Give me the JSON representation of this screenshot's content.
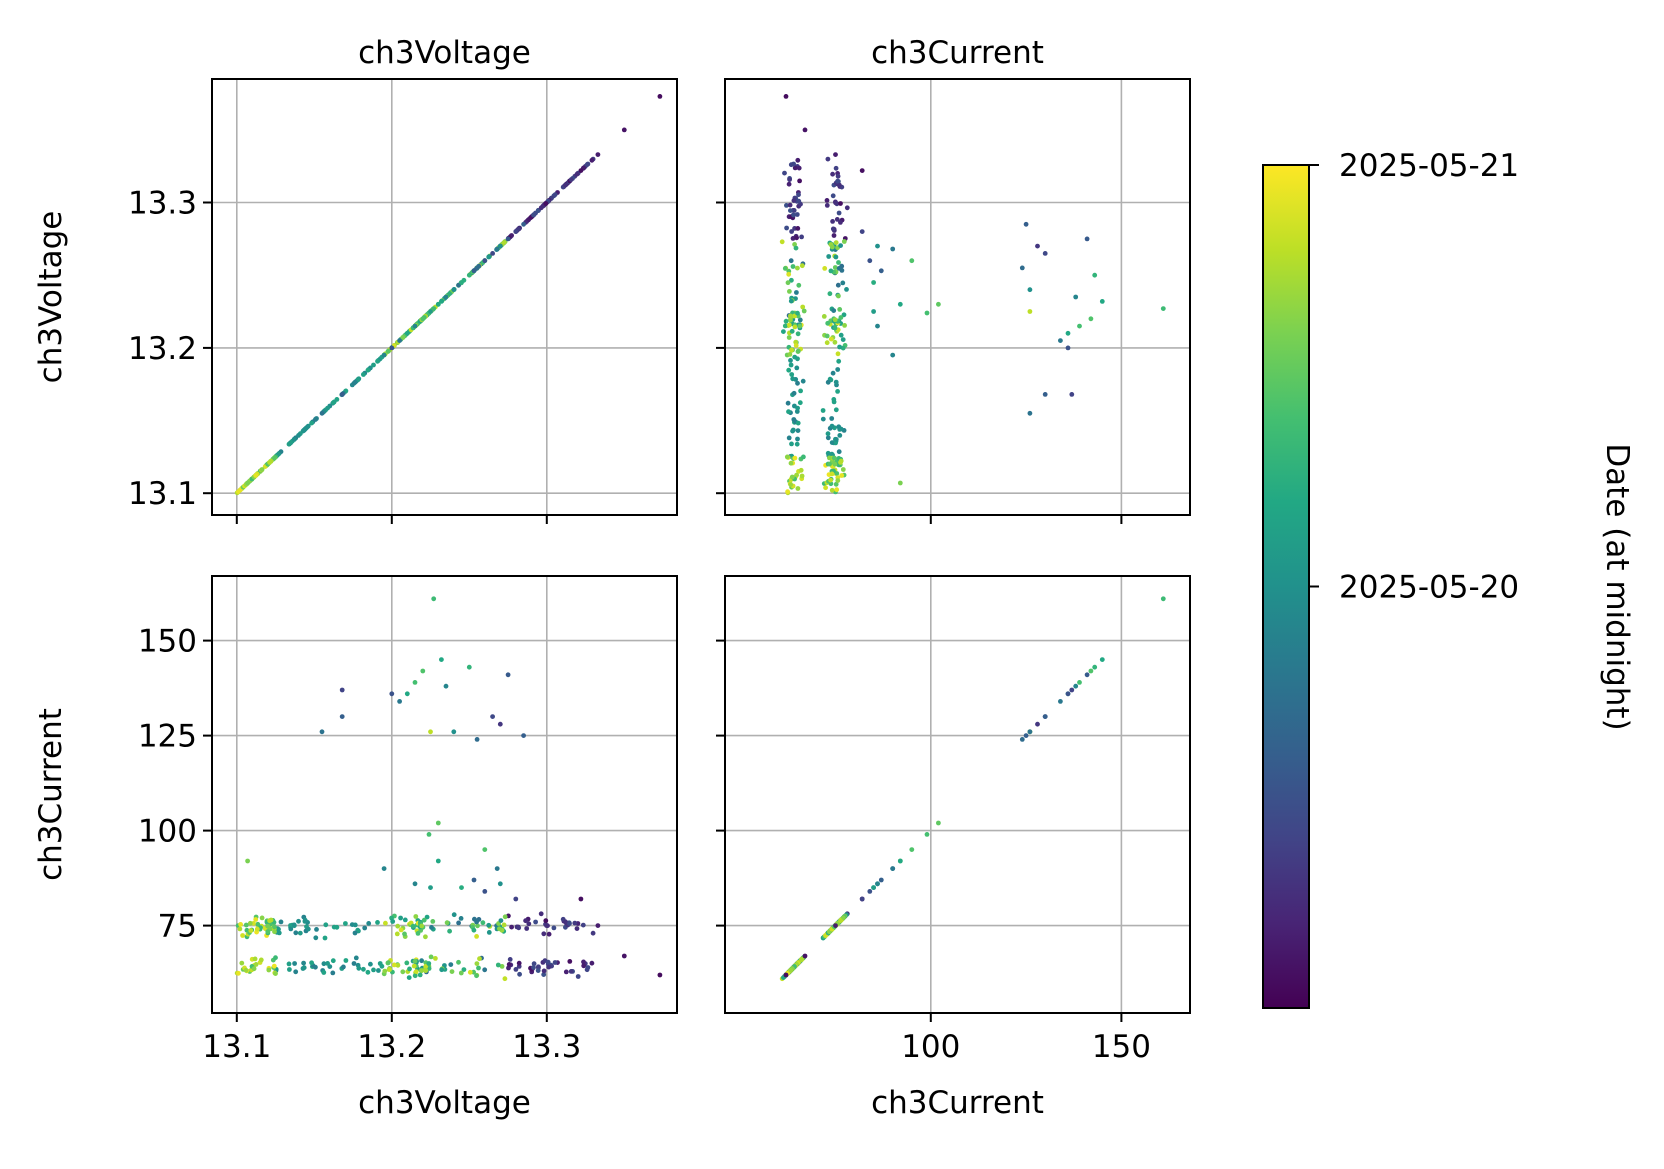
{
  "chart_data": {
    "type": "scatter",
    "figure": "scatter matrix",
    "variables": [
      "ch3Voltage",
      "ch3Current"
    ],
    "panels": [
      {
        "row": 0,
        "col": 0,
        "title": "ch3Voltage",
        "x_var": "ch3Voltage",
        "y_var": "ch3Voltage",
        "xlim": [
          13.084,
          13.384
        ],
        "ylim": [
          13.085,
          13.385
        ],
        "xticks": [
          13.1,
          13.2,
          13.3
        ],
        "yticks": [
          13.1,
          13.2,
          13.3
        ],
        "xticklabels": [],
        "yticklabels": [
          "13.1",
          "13.2",
          "13.3"
        ],
        "xlabel": "",
        "ylabel": "ch3Voltage",
        "grid": true
      },
      {
        "row": 0,
        "col": 1,
        "title": "ch3Current",
        "x_var": "ch3Current",
        "y_var": "ch3Voltage",
        "xlim": [
          46,
          168
        ],
        "ylim": [
          13.085,
          13.385
        ],
        "xticks": [
          100,
          150
        ],
        "yticks": [
          13.1,
          13.2,
          13.3
        ],
        "xticklabels": [],
        "yticklabels": [],
        "xlabel": "",
        "ylabel": "",
        "grid": true
      },
      {
        "row": 1,
        "col": 0,
        "title": "",
        "x_var": "ch3Voltage",
        "y_var": "ch3Current",
        "xlim": [
          13.084,
          13.384
        ],
        "ylim": [
          52,
          167
        ],
        "xticks": [
          13.1,
          13.2,
          13.3
        ],
        "yticks": [
          75,
          100,
          125,
          150
        ],
        "xticklabels": [
          "13.1",
          "13.2",
          "13.3"
        ],
        "yticklabels": [
          "75",
          "100",
          "125",
          "150"
        ],
        "xlabel": "ch3Voltage",
        "ylabel": "ch3Current",
        "grid": true
      },
      {
        "row": 1,
        "col": 1,
        "title": "",
        "x_var": "ch3Current",
        "y_var": "ch3Current",
        "xlim": [
          46,
          168
        ],
        "ylim": [
          52,
          167
        ],
        "xticks": [
          100,
          150
        ],
        "yticks": [
          75,
          100,
          125,
          150
        ],
        "xticklabels": [
          "100",
          "150"
        ],
        "yticklabels": [],
        "xlabel": "ch3Current",
        "ylabel": "",
        "grid": true
      }
    ],
    "colorbar": {
      "label": "Date (at midnight)",
      "colormap": "viridis",
      "ticks": [
        {
          "label": "2025-05-21",
          "position": 1.0
        },
        {
          "label": "2025-05-20",
          "position": 0.5
        }
      ]
    },
    "clusters": {
      "col_a": {
        "x_center": 64,
        "x_spread": 2.4
      },
      "col_b": {
        "x_center": 75,
        "x_spread": 2.6
      },
      "bands": [
        {
          "v_from": 13.275,
          "v_to": 13.33,
          "t_from": 0.03,
          "t_to": 0.26
        },
        {
          "v_from": 13.215,
          "v_to": 13.275,
          "t_from": 0.35,
          "t_to": 0.98
        },
        {
          "v_from": 13.195,
          "v_to": 13.225,
          "t_from": 0.55,
          "t_to": 0.98
        },
        {
          "v_from": 13.125,
          "v_to": 13.195,
          "t_from": 0.42,
          "t_to": 0.6
        },
        {
          "v_from": 13.1,
          "v_to": 13.125,
          "t_from": 0.65,
          "t_to": 0.98
        }
      ],
      "outliers": [
        {
          "v": 13.373,
          "c": 62,
          "t": 0.03
        },
        {
          "v": 13.35,
          "c": 67,
          "t": 0.05
        },
        {
          "v": 13.333,
          "c": 75,
          "t": 0.08
        },
        {
          "v": 13.322,
          "c": 82,
          "t": 0.04
        },
        {
          "v": 13.285,
          "c": 125,
          "t": 0.3
        },
        {
          "v": 13.275,
          "c": 141,
          "t": 0.28
        },
        {
          "v": 13.27,
          "c": 128,
          "t": 0.16
        },
        {
          "v": 13.265,
          "c": 130,
          "t": 0.22
        },
        {
          "v": 13.255,
          "c": 124,
          "t": 0.35
        },
        {
          "v": 13.25,
          "c": 143,
          "t": 0.65
        },
        {
          "v": 13.24,
          "c": 126,
          "t": 0.5
        },
        {
          "v": 13.235,
          "c": 138,
          "t": 0.45
        },
        {
          "v": 13.232,
          "c": 145,
          "t": 0.6
        },
        {
          "v": 13.227,
          "c": 161,
          "t": 0.68
        },
        {
          "v": 13.225,
          "c": 126,
          "t": 0.9
        },
        {
          "v": 13.22,
          "c": 142,
          "t": 0.72
        },
        {
          "v": 13.215,
          "c": 139,
          "t": 0.7
        },
        {
          "v": 13.21,
          "c": 136,
          "t": 0.6
        },
        {
          "v": 13.205,
          "c": 134,
          "t": 0.4
        },
        {
          "v": 13.2,
          "c": 136,
          "t": 0.25
        },
        {
          "v": 13.168,
          "c": 137,
          "t": 0.2
        },
        {
          "v": 13.168,
          "c": 130,
          "t": 0.3
        },
        {
          "v": 13.155,
          "c": 126,
          "t": 0.38
        },
        {
          "v": 13.23,
          "c": 102,
          "t": 0.75
        },
        {
          "v": 13.224,
          "c": 99,
          "t": 0.7
        },
        {
          "v": 13.195,
          "c": 90,
          "t": 0.45
        },
        {
          "v": 13.107,
          "c": 92,
          "t": 0.8
        },
        {
          "v": 13.26,
          "c": 95,
          "t": 0.72
        },
        {
          "v": 13.23,
          "c": 92,
          "t": 0.6
        },
        {
          "v": 13.268,
          "c": 90,
          "t": 0.4
        },
        {
          "v": 13.253,
          "c": 87,
          "t": 0.3
        },
        {
          "v": 13.245,
          "c": 85,
          "t": 0.62
        },
        {
          "v": 13.27,
          "c": 86,
          "t": 0.5
        },
        {
          "v": 13.26,
          "c": 84,
          "t": 0.25
        },
        {
          "v": 13.215,
          "c": 86,
          "t": 0.45
        },
        {
          "v": 13.28,
          "c": 82,
          "t": 0.2
        },
        {
          "v": 13.225,
          "c": 85,
          "t": 0.55
        }
      ]
    }
  }
}
